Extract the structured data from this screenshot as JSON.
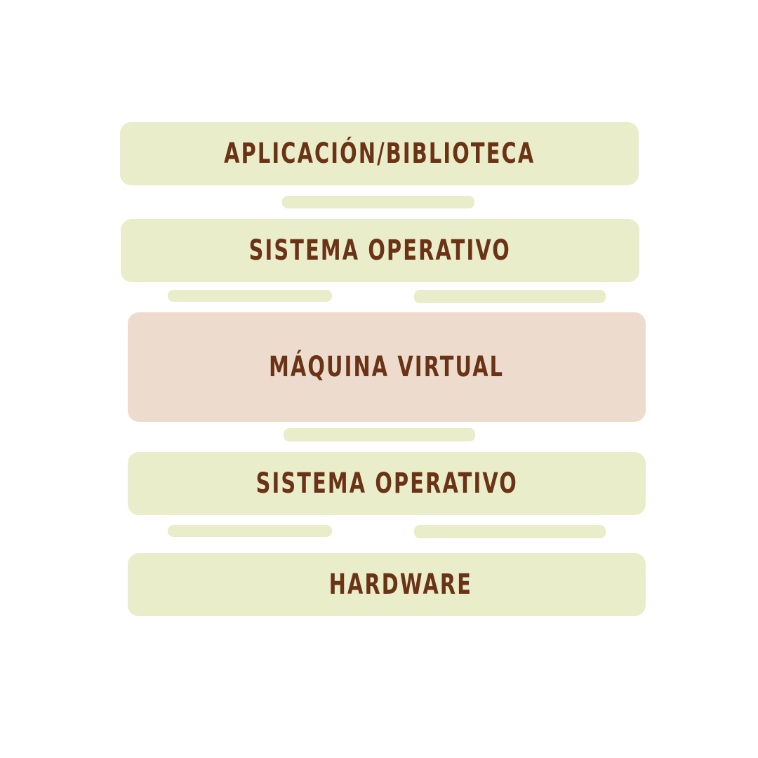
{
  "diagram": {
    "colors": {
      "layer_fill": "#e9edca",
      "highlight_fill": "#eddccd",
      "connector_fill": "#e9edca",
      "text": "#6b3316",
      "background": "#ffffff"
    },
    "layers": [
      {
        "id": "app",
        "label": "APLICACIÓN/BIBLIOTECA",
        "highlight": false
      },
      {
        "id": "os-guest",
        "label": "SISTEMA OPERATIVO",
        "highlight": false
      },
      {
        "id": "vm",
        "label": "MÁQUINA VIRTUAL",
        "highlight": true
      },
      {
        "id": "os-host",
        "label": "SISTEMA OPERATIVO",
        "highlight": false
      },
      {
        "id": "hw",
        "label": "HARDWARE",
        "highlight": false
      }
    ]
  }
}
